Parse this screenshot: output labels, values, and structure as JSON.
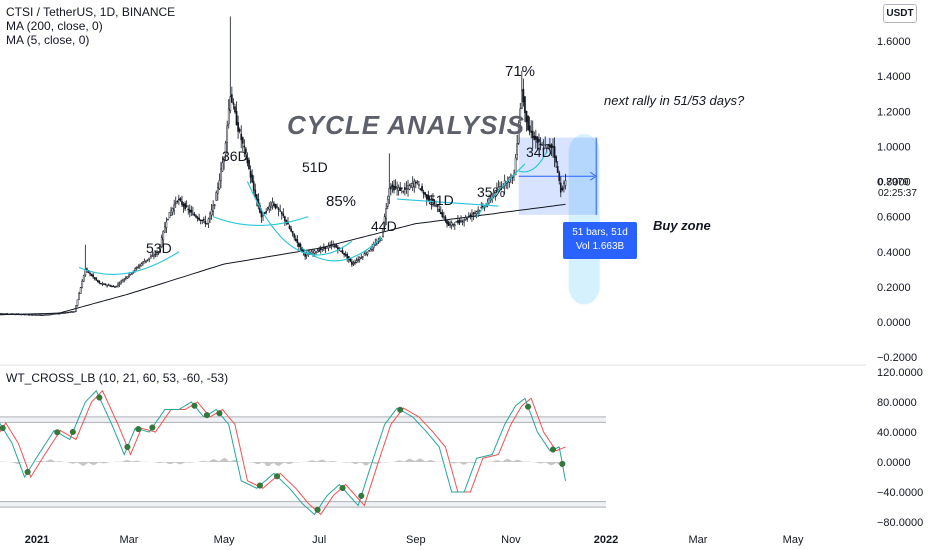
{
  "legend": {
    "symbol": "CTSI / TetherUS, 1D, BINANCE",
    "ma200": "MA (200, close, 0)",
    "ma5": "MA (5, close, 0)"
  },
  "currency_button": "USDT",
  "oscillator_legend": "WT_CROSS_LB (10, 21, 60, 53, -60, -53)",
  "annotations": {
    "title": "CYCLE ANALYSIS",
    "c53": "53D",
    "c36": "36D",
    "c51a": "51D",
    "p85": "85%",
    "c44": "44D",
    "c51b": "51D",
    "p35": "35%",
    "c34": "34D",
    "p71": "71%",
    "next_rally": "next rally in 51/53 days?",
    "buy_zone": "Buy zone"
  },
  "measure_tooltip": {
    "line1": "51 bars, 51d",
    "line2": "Vol 1.663B"
  },
  "last_price": {
    "price": "0.7979",
    "countdown": "02:25:37"
  },
  "colors": {
    "candles": "#131722",
    "ma200": "#131722",
    "cycle_arcs": "#26c6da",
    "measure_fill": "#2962ff",
    "buy_zone_fill": "#b3e5fc",
    "wt1": "#26a69a",
    "wt2": "#ef5350",
    "dots": "#2e7d32",
    "histogram": "#9e9e9e"
  },
  "chart_data": [
    {
      "type": "candlestick",
      "title": "CTSI / TetherUS, 1D, BINANCE",
      "x_ticks": [
        "2021",
        "Mar",
        "May",
        "Jul",
        "Sep",
        "Nov",
        "2022",
        "Mar",
        "May"
      ],
      "y_ticks": [
        1.6,
        1.4,
        1.2,
        1.0,
        0.8,
        0.6,
        0.4,
        0.2,
        0.0,
        -0.2
      ],
      "y_tick_labels": [
        "1.6000",
        "1.4000",
        "1.2000",
        "1.0000",
        "0.8000",
        "0.6000",
        "0.4000",
        "0.2000",
        "0.0000",
        "−0.2000"
      ],
      "ylim": [
        -0.2,
        1.8
      ],
      "price_path": [
        [
          "2020-12-01",
          0.05
        ],
        [
          "2020-12-20",
          0.045
        ],
        [
          "2021-01-05",
          0.04
        ],
        [
          "2021-01-25",
          0.06
        ],
        [
          "2021-02-01",
          0.3
        ],
        [
          "2021-02-10",
          0.22
        ],
        [
          "2021-02-20",
          0.2
        ],
        [
          "2021-03-01",
          0.27
        ],
        [
          "2021-03-10",
          0.34
        ],
        [
          "2021-03-20",
          0.4
        ],
        [
          "2021-03-25",
          0.58
        ],
        [
          "2021-04-01",
          0.7
        ],
        [
          "2021-04-10",
          0.62
        ],
        [
          "2021-04-20",
          0.56
        ],
        [
          "2021-04-25",
          0.68
        ],
        [
          "2021-05-01",
          0.95
        ],
        [
          "2021-05-05",
          1.3
        ],
        [
          "2021-05-10",
          1.1
        ],
        [
          "2021-05-15",
          0.95
        ],
        [
          "2021-05-20",
          0.75
        ],
        [
          "2021-05-25",
          0.6
        ],
        [
          "2021-06-01",
          0.68
        ],
        [
          "2021-06-08",
          0.6
        ],
        [
          "2021-06-15",
          0.48
        ],
        [
          "2021-06-22",
          0.38
        ],
        [
          "2021-06-28",
          0.4
        ],
        [
          "2021-07-10",
          0.44
        ],
        [
          "2021-07-18",
          0.38
        ],
        [
          "2021-07-22",
          0.33
        ],
        [
          "2021-08-01",
          0.4
        ],
        [
          "2021-08-10",
          0.48
        ],
        [
          "2021-08-15",
          0.77
        ],
        [
          "2021-08-25",
          0.75
        ],
        [
          "2021-09-01",
          0.8
        ],
        [
          "2021-09-07",
          0.72
        ],
        [
          "2021-09-15",
          0.65
        ],
        [
          "2021-09-22",
          0.55
        ],
        [
          "2021-10-01",
          0.58
        ],
        [
          "2021-10-15",
          0.66
        ],
        [
          "2021-10-25",
          0.77
        ],
        [
          "2021-11-03",
          0.84
        ],
        [
          "2021-11-08",
          1.32
        ],
        [
          "2021-11-12",
          1.1
        ],
        [
          "2021-11-20",
          1.0
        ],
        [
          "2021-11-28",
          1.0
        ],
        [
          "2021-12-03",
          0.75
        ],
        [
          "2021-12-06",
          0.7979
        ]
      ],
      "spikes": [
        [
          "2021-02-01",
          0.44
        ],
        [
          "2021-05-05",
          1.74
        ],
        [
          "2021-08-15",
          0.96
        ],
        [
          "2021-11-08",
          1.43
        ]
      ],
      "ma200_path": [
        [
          "2020-12-01",
          0.04
        ],
        [
          "2021-01-15",
          0.05
        ],
        [
          "2021-03-01",
          0.16
        ],
        [
          "2021-05-01",
          0.33
        ],
        [
          "2021-07-01",
          0.42
        ],
        [
          "2021-09-01",
          0.56
        ],
        [
          "2021-10-15",
          0.61
        ],
        [
          "2021-12-06",
          0.67
        ]
      ],
      "last_price": 0.7979
    },
    {
      "type": "line",
      "title": "WT_CROSS_LB (10, 21, 60, 53, -60, -53)",
      "y_ticks": [
        120,
        80,
        40,
        0,
        -40,
        -80
      ],
      "y_tick_labels": [
        "120.0000",
        "80.0000",
        "40.0000",
        "0.0000",
        "−40.0000",
        "−80.0000"
      ],
      "ylim": [
        -85,
        125
      ],
      "levels": [
        60,
        53,
        -53,
        -60
      ],
      "wt1_path": [
        [
          "2020-12-01",
          30
        ],
        [
          "2020-12-08",
          52
        ],
        [
          "2020-12-16",
          25
        ],
        [
          "2020-12-24",
          -20
        ],
        [
          "2021-01-02",
          10
        ],
        [
          "2021-01-12",
          42
        ],
        [
          "2021-01-22",
          30
        ],
        [
          "2021-02-01",
          80
        ],
        [
          "2021-02-08",
          95
        ],
        [
          "2021-02-18",
          50
        ],
        [
          "2021-02-26",
          10
        ],
        [
          "2021-03-05",
          45
        ],
        [
          "2021-03-14",
          40
        ],
        [
          "2021-03-24",
          70
        ],
        [
          "2021-04-02",
          70
        ],
        [
          "2021-04-10",
          80
        ],
        [
          "2021-04-18",
          60
        ],
        [
          "2021-04-26",
          70
        ],
        [
          "2021-05-04",
          50
        ],
        [
          "2021-05-12",
          -25
        ],
        [
          "2021-05-22",
          -35
        ],
        [
          "2021-06-02",
          -15
        ],
        [
          "2021-06-12",
          -35
        ],
        [
          "2021-06-20",
          -55
        ],
        [
          "2021-06-28",
          -70
        ],
        [
          "2021-07-06",
          -45
        ],
        [
          "2021-07-14",
          -30
        ],
        [
          "2021-07-26",
          -58
        ],
        [
          "2021-08-04",
          0
        ],
        [
          "2021-08-12",
          50
        ],
        [
          "2021-08-20",
          72
        ],
        [
          "2021-08-30",
          60
        ],
        [
          "2021-09-08",
          40
        ],
        [
          "2021-09-16",
          20
        ],
        [
          "2021-09-24",
          -40
        ],
        [
          "2021-10-02",
          -40
        ],
        [
          "2021-10-10",
          5
        ],
        [
          "2021-10-20",
          10
        ],
        [
          "2021-10-28",
          50
        ],
        [
          "2021-11-04",
          75
        ],
        [
          "2021-11-10",
          85
        ],
        [
          "2021-11-18",
          40
        ],
        [
          "2021-11-26",
          15
        ],
        [
          "2021-12-02",
          20
        ],
        [
          "2021-12-06",
          -25
        ]
      ],
      "histogram_path": [
        [
          "2020-12-01",
          5
        ],
        [
          "2020-12-20",
          -3
        ],
        [
          "2021-01-10",
          4
        ],
        [
          "2021-02-01",
          -6
        ],
        [
          "2021-03-01",
          3
        ],
        [
          "2021-04-01",
          -4
        ],
        [
          "2021-05-01",
          6
        ],
        [
          "2021-06-01",
          -7
        ],
        [
          "2021-07-01",
          4
        ],
        [
          "2021-08-01",
          -5
        ],
        [
          "2021-09-01",
          6
        ],
        [
          "2021-10-01",
          -4
        ],
        [
          "2021-11-01",
          5
        ],
        [
          "2021-12-06",
          -8
        ]
      ]
    }
  ]
}
